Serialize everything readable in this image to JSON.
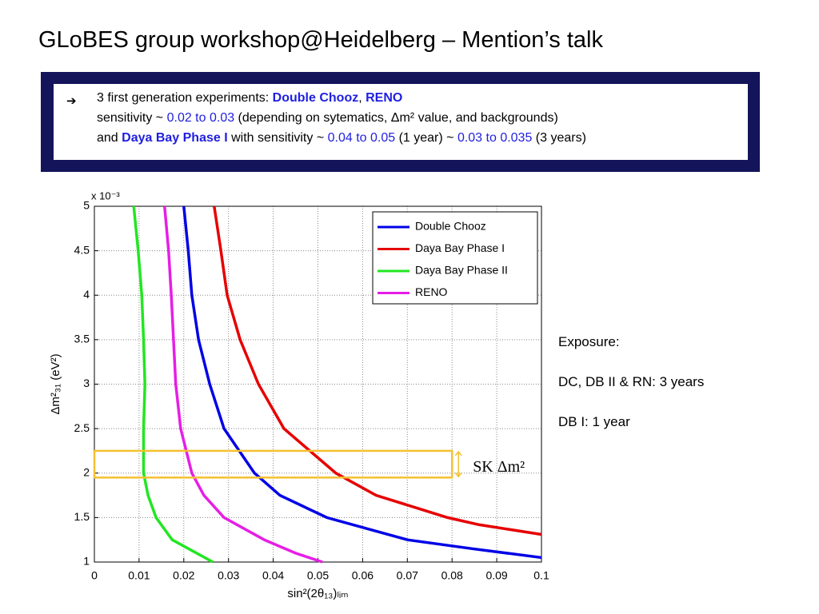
{
  "title": "GLoBES group workshop@Heidelberg – Mention’s talk",
  "bullet": {
    "lines": [
      [
        {
          "text": "3 first generation experiments: ",
          "color": "#000000",
          "bold": false
        },
        {
          "text": "Double Chooz",
          "color": "#1f1fe0",
          "bold": true
        },
        {
          "text": ", ",
          "color": "#000000",
          "bold": false
        },
        {
          "text": "RENO",
          "color": "#1f1fe0",
          "bold": true
        }
      ],
      [
        {
          "text": "sensitivity ~ ",
          "color": "#000000",
          "bold": false
        },
        {
          "text": "0.02 to 0.03",
          "color": "#1f1fe0",
          "bold": false
        },
        {
          "text": " (depending on sytematics, Δm² value, and backgrounds)",
          "color": "#000000",
          "bold": false
        }
      ],
      [
        {
          "text": "and ",
          "color": "#000000",
          "bold": false
        },
        {
          "text": "Daya Bay Phase I",
          "color": "#1f1fe0",
          "bold": true
        },
        {
          "text": " with sensitivity ~ ",
          "color": "#000000",
          "bold": false
        },
        {
          "text": "0.04 to 0.05",
          "color": "#1f1fe0",
          "bold": false
        },
        {
          "text": " (1 year) ~ ",
          "color": "#000000",
          "bold": false
        },
        {
          "text": "0.03 to 0.035",
          "color": "#1f1fe0",
          "bold": false
        },
        {
          "text": " (3 years)",
          "color": "#000000",
          "bold": false
        }
      ]
    ]
  },
  "notes": [
    "Exposure:",
    "DC, DB II & RN: 3 years",
    "DB I: 1 year"
  ],
  "chart_data": {
    "type": "line",
    "x_label": "sin²(2θ₁₃)ₗᵢₘ",
    "y_label": "Δm²₃₁ (eV²)",
    "y_multiplier": "x 10⁻³",
    "xlim": [
      0,
      0.1
    ],
    "ylim": [
      1,
      5
    ],
    "xticks": [
      0,
      0.01,
      0.02,
      0.03,
      0.04,
      0.05,
      0.06,
      0.07,
      0.08,
      0.09,
      0.1
    ],
    "yticks": [
      1,
      1.5,
      2,
      2.5,
      3,
      3.5,
      4,
      4.5,
      5
    ],
    "grid": true,
    "legend": "upper right",
    "series": [
      {
        "name": "Double Chooz",
        "color": "#0000e6",
        "x": [
          0.02,
          0.021,
          0.0218,
          0.0233,
          0.0258,
          0.029,
          0.0358,
          0.0415,
          0.052,
          0.07,
          0.0845,
          0.1
        ],
        "values": [
          5,
          4.5,
          4,
          3.5,
          3,
          2.5,
          2,
          1.75,
          1.5,
          1.25,
          1.15,
          1.05
        ]
      },
      {
        "name": "Daya Bay Phase I",
        "color": "#e60000",
        "x": [
          0.0268,
          0.0283,
          0.0297,
          0.0326,
          0.0367,
          0.0424,
          0.054,
          0.063,
          0.079,
          0.086,
          0.1
        ],
        "values": [
          5,
          4.5,
          4,
          3.5,
          3,
          2.5,
          2,
          1.75,
          1.5,
          1.42,
          1.31
        ]
      },
      {
        "name": "Daya Bay Phase II",
        "color": "#22e622",
        "x": [
          0.0088,
          0.0098,
          0.0106,
          0.011,
          0.0113,
          0.011,
          0.011,
          0.012,
          0.0138,
          0.0174,
          0.0265
        ],
        "values": [
          5,
          4.5,
          4,
          3.5,
          3,
          2.5,
          2,
          1.75,
          1.5,
          1.25,
          1
        ]
      },
      {
        "name": "RENO",
        "color": "#e61ee6",
        "x": [
          0.0157,
          0.0166,
          0.0172,
          0.0177,
          0.0182,
          0.0193,
          0.0218,
          0.0245,
          0.029,
          0.038,
          0.045,
          0.051
        ],
        "values": [
          5,
          4.5,
          4,
          3.5,
          3,
          2.5,
          2,
          1.75,
          1.5,
          1.25,
          1.1,
          1
        ]
      }
    ],
    "annotations": [
      {
        "text": "SK Δm²",
        "color": "#f5c030",
        "x": [
          0,
          0.08
        ],
        "y": [
          1.95,
          2.25
        ]
      }
    ]
  }
}
